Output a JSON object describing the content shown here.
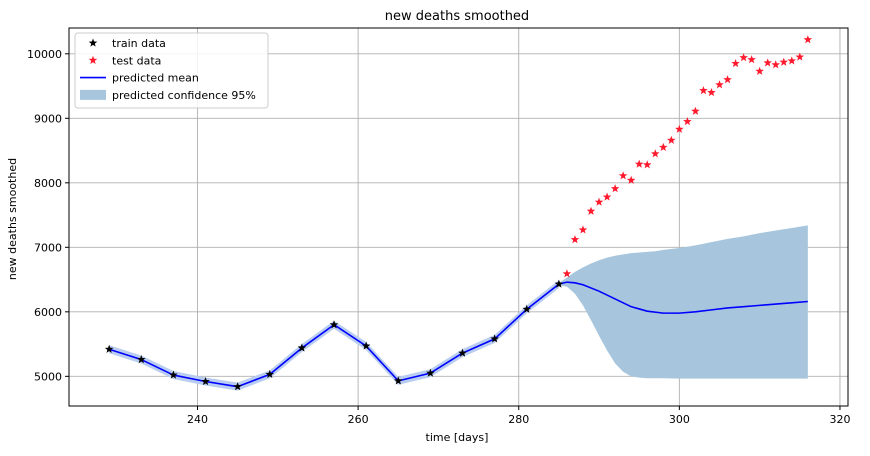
{
  "chart_data": {
    "type": "line",
    "title": "new deaths smoothed",
    "xlabel": "time [days]",
    "ylabel": "new deaths smoothed",
    "xlim": [
      224,
      321
    ],
    "ylim": [
      4540,
      10400
    ],
    "xticks": [
      240,
      260,
      280,
      300,
      320
    ],
    "yticks": [
      5000,
      6000,
      7000,
      8000,
      9000,
      10000
    ],
    "grid": true,
    "legend_position": "top-left",
    "colors": {
      "train": "#000000",
      "test": "#ff1a2e",
      "mean": "#0000ff",
      "confidence": "#a7c6dd",
      "train_band": "#b8cdf0",
      "grid": "#b0b0b0"
    },
    "legend": [
      {
        "label": "train data",
        "kind": "star",
        "color": "#000000"
      },
      {
        "label": "test data",
        "kind": "star",
        "color": "#ff1a2e"
      },
      {
        "label": "predicted mean",
        "kind": "line",
        "color": "#0000ff"
      },
      {
        "label": "predicted confidence 95%",
        "kind": "patch",
        "color": "#a7c6dd"
      }
    ],
    "train_data": {
      "x": [
        229,
        233,
        237,
        241,
        245,
        249,
        253,
        257,
        261,
        265,
        269,
        273,
        277,
        281,
        285
      ],
      "y": [
        5420,
        5260,
        5020,
        4920,
        4840,
        5030,
        5440,
        5800,
        5470,
        4930,
        5050,
        5360,
        5580,
        6040,
        6430
      ]
    },
    "test_data": {
      "x": [
        286,
        287,
        288,
        289,
        290,
        291,
        292,
        293,
        294,
        295,
        296,
        297,
        298,
        299,
        300,
        301,
        302,
        303,
        304,
        305,
        306,
        307,
        308,
        309,
        310,
        311,
        312,
        313,
        314,
        315,
        316
      ],
      "y": [
        6590,
        7120,
        7270,
        7560,
        7700,
        7780,
        7910,
        8110,
        8040,
        8290,
        8280,
        8450,
        8550,
        8660,
        8830,
        8950,
        9110,
        9430,
        9400,
        9520,
        9600,
        9850,
        9940,
        9910,
        9730,
        9860,
        9830,
        9870,
        9890,
        9950,
        10220
      ]
    },
    "predicted_mean": {
      "x": [
        229,
        233,
        237,
        241,
        245,
        249,
        253,
        257,
        261,
        265,
        269,
        273,
        277,
        281,
        285,
        286,
        287,
        288,
        290,
        292,
        294,
        296,
        298,
        300,
        302,
        304,
        306,
        308,
        310,
        312,
        314,
        316
      ],
      "y": [
        5420,
        5260,
        5020,
        4920,
        4840,
        5030,
        5440,
        5800,
        5470,
        4930,
        5050,
        5360,
        5580,
        6040,
        6430,
        6460,
        6450,
        6420,
        6320,
        6200,
        6080,
        6010,
        5980,
        5980,
        6000,
        6030,
        6060,
        6080,
        6100,
        6120,
        6140,
        6160
      ]
    },
    "confidence_95": {
      "x": [
        285,
        286,
        287,
        288,
        289,
        290,
        291,
        292,
        293,
        294,
        295,
        296,
        297,
        298,
        300,
        302,
        304,
        306,
        308,
        310,
        312,
        314,
        316
      ],
      "upper": [
        6450,
        6530,
        6620,
        6690,
        6750,
        6800,
        6840,
        6870,
        6890,
        6910,
        6920,
        6930,
        6940,
        6960,
        6990,
        7030,
        7080,
        7130,
        7170,
        7220,
        7260,
        7300,
        7340
      ],
      "lower": [
        6410,
        6390,
        6280,
        6100,
        5870,
        5630,
        5400,
        5200,
        5070,
        5000,
        4980,
        4970,
        4970,
        4970,
        4965,
        4965,
        4965,
        4965,
        4965,
        4965,
        4965,
        4965,
        4965
      ]
    }
  }
}
